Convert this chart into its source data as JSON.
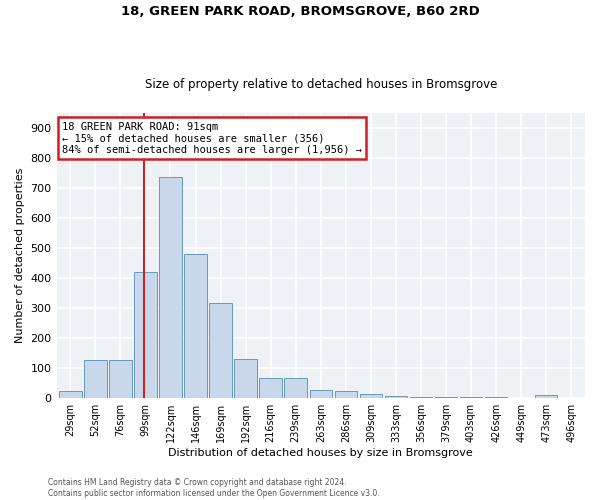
{
  "title": "18, GREEN PARK ROAD, BROMSGROVE, B60 2RD",
  "subtitle": "Size of property relative to detached houses in Bromsgrove",
  "xlabel": "Distribution of detached houses by size in Bromsgrove",
  "ylabel": "Number of detached properties",
  "bar_color": "#c8d8ea",
  "bar_edge_color": "#6699bb",
  "background_color": "#eef2f7",
  "grid_color": "#ffffff",
  "categories": [
    "29sqm",
    "52sqm",
    "76sqm",
    "99sqm",
    "122sqm",
    "146sqm",
    "169sqm",
    "192sqm",
    "216sqm",
    "239sqm",
    "263sqm",
    "286sqm",
    "309sqm",
    "333sqm",
    "356sqm",
    "379sqm",
    "403sqm",
    "426sqm",
    "449sqm",
    "473sqm",
    "496sqm"
  ],
  "values": [
    22,
    125,
    125,
    420,
    735,
    480,
    315,
    130,
    65,
    65,
    25,
    22,
    12,
    5,
    2,
    2,
    1,
    1,
    0,
    10,
    0
  ],
  "ylim": [
    0,
    950
  ],
  "yticks": [
    0,
    100,
    200,
    300,
    400,
    500,
    600,
    700,
    800,
    900
  ],
  "property_line_x": 2.95,
  "annotation_text_line1": "18 GREEN PARK ROAD: 91sqm",
  "annotation_text_line2": "← 15% of detached houses are smaller (356)",
  "annotation_text_line3": "84% of semi-detached houses are larger (1,956) →",
  "annotation_box_color": "#ffffff",
  "annotation_box_edge_color": "#cc2222",
  "property_line_color": "#cc2222",
  "footer_line1": "Contains HM Land Registry data © Crown copyright and database right 2024.",
  "footer_line2": "Contains public sector information licensed under the Open Government Licence v3.0."
}
